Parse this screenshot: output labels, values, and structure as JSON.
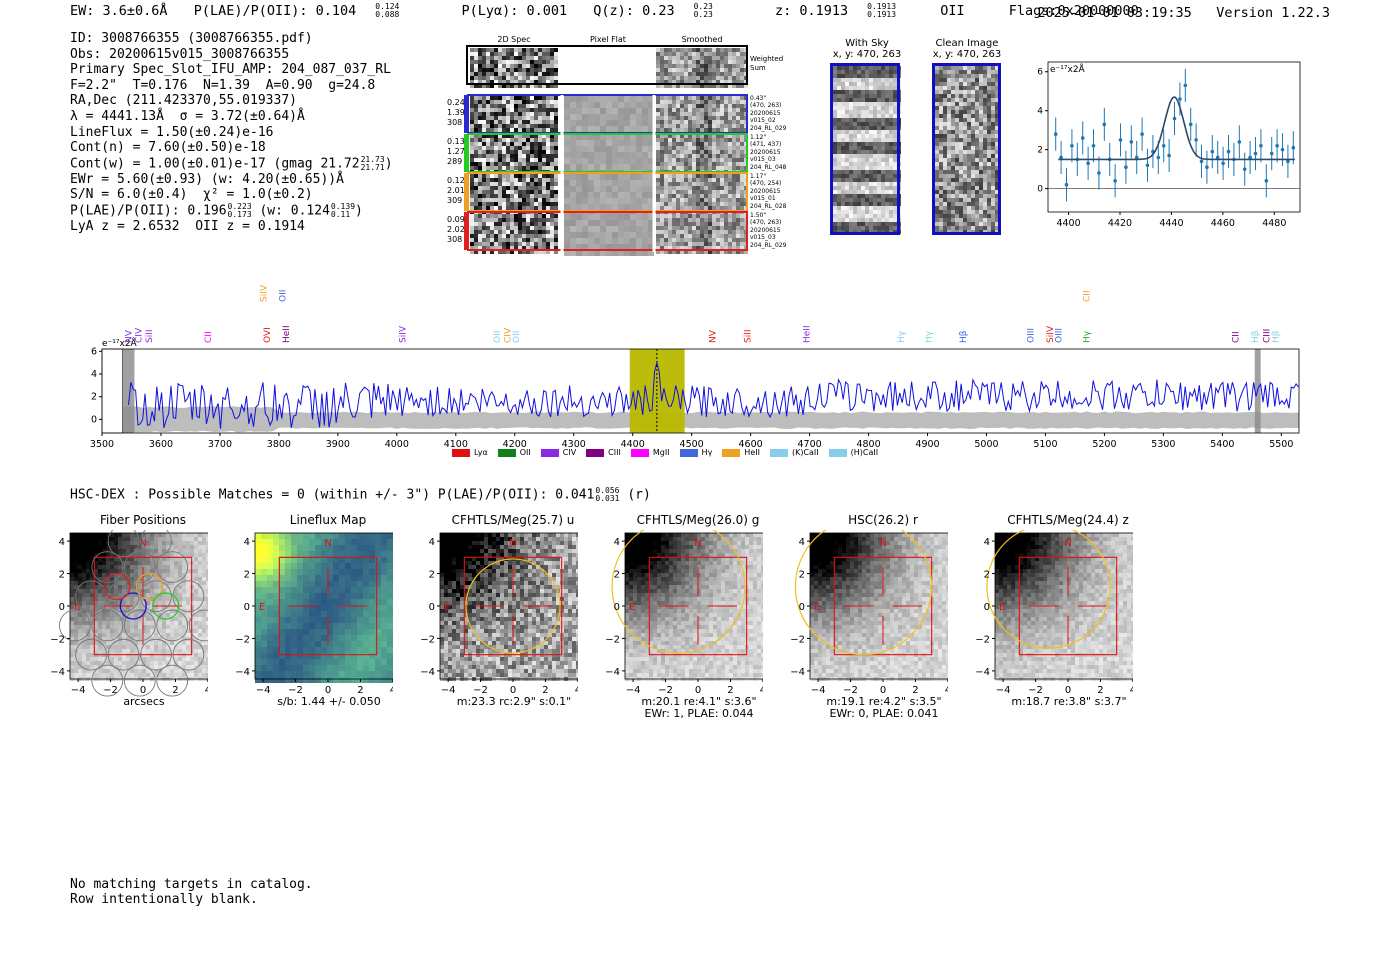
{
  "header": {
    "ew": "EW: 3.6±0.6Å",
    "plae": "P(LAE)/P(OII): 0.104",
    "plae_hi": "0.124",
    "plae_lo": "0.088",
    "plya": "P(Lyα): 0.001",
    "qz": "Q(z): 0.23",
    "qz_hi": "0.23",
    "qz_lo": "0.23",
    "z": "z: 0.1913",
    "z_hi": "0.1913",
    "z_lo": "0.1913",
    "line": "OII",
    "flags": "Flags:0x20000000",
    "datetime": "2025-01-01 03:19:35",
    "version": "Version 1.22.3"
  },
  "info": {
    "id": "ID: 3008766355 (3008766355.pdf)",
    "obs": "Obs: 20200615v015_3008766355",
    "primary": "Primary Spec_Slot_IFU_AMP: 204_087_037_RL",
    "params": "F=2.2\"  T=0.176  N=1.39  A=0.90  g=24.8",
    "radec": "RA,Dec (211.423370,55.019337)",
    "lambda": "λ = 4441.13Å  σ = 3.72(±0.64)Å",
    "lineflux": "LineFlux = 1.50(±0.24)e-16",
    "contn": "Cont(n) = 7.60(±0.50)e-18",
    "contw": "Cont(w) = 1.00(±0.01)e-17 (gmag 21.72",
    "contw_hi": "21.73",
    "contw_lo": "21.71",
    "contw_close": ")",
    "ewr": "EWr = 5.60(±0.93) (w: 4.20(±0.65))Å",
    "sn": "S/N = 6.0(±0.4)  χ² = 1.0(±0.2)",
    "plae2": "P(LAE)/P(OII): 0.196",
    "plae2_hi": "0.223",
    "plae2_lo": "0.173",
    "plae2_w": "(w: 0.124",
    "plae2_w_hi": "0.139",
    "plae2_w_lo": "0.11",
    "plae2_close": ")",
    "lyaz": "LyA z = 2.6532  OII z = 0.1914"
  },
  "cutouts": {
    "col_2d": "2D Spec",
    "col_flat": "Pixel Flat",
    "col_smooth": "Smoothed",
    "weighted": "Weighted",
    "sum": "Sum",
    "rows": [
      {
        "a": "0.24",
        "b": "1.39",
        "c": "308",
        "m1": "0.43\"",
        "m2": "(470, 263)",
        "m3": "20200615",
        "m4": "v015_02",
        "m5": "204_RL_029",
        "color": "#2a2ad0"
      },
      {
        "a": "0.13",
        "b": "1.27",
        "c": "289",
        "m1": "1.12\"",
        "m2": "(471, 437)",
        "m3": "20200615",
        "m4": "v015_03",
        "m5": "204_RL_048",
        "color": "#22cc22"
      },
      {
        "a": "0.12",
        "b": "2.01",
        "c": "309",
        "m1": "1.17\"",
        "m2": "(470, 254)",
        "m3": "20200615",
        "m4": "v015_01",
        "m5": "204_RL_028",
        "color": "#f0a020"
      },
      {
        "a": "0.09",
        "b": "2.02",
        "c": "308",
        "m1": "1.50\"",
        "m2": "(470, 263)",
        "m3": "20200615",
        "m4": "v015_03",
        "m5": "204_RL_029",
        "color": "#e02020"
      }
    ]
  },
  "sky": {
    "title1": "With Sky",
    "title2": "x, y: 470, 263",
    "clean1": "Clean Image",
    "clean2": "x, y: 470, 263"
  },
  "zoom": {
    "unit": "e⁻¹⁷x2Å",
    "xticks": [
      "4400",
      "4420",
      "4440",
      "4460",
      "4480"
    ],
    "yticks": [
      "0",
      "2",
      "4",
      "6"
    ],
    "points": [
      2.8,
      1.6,
      0.2,
      2.2,
      1.5,
      2.6,
      1.3,
      2.2,
      0.8,
      3.3,
      1.5,
      0.4,
      2.5,
      1.1,
      2.4,
      1.6,
      2.8,
      1.2,
      1.9,
      1.6,
      2.2,
      1.7,
      3.6,
      4.6,
      5.3,
      3.3,
      2.5,
      1.4,
      1.1,
      1.9,
      1.6,
      1.3,
      1.9,
      1.5,
      2.4,
      1.0,
      1.6,
      1.8,
      2.2,
      0.4,
      1.8,
      2.2,
      2.0,
      1.4,
      2.1
    ]
  },
  "spectrum": {
    "unit": "e⁻¹⁷x2Å",
    "xticks": [
      "3500",
      "3600",
      "3700",
      "3800",
      "3900",
      "4000",
      "4100",
      "4200",
      "4300",
      "4400",
      "4500",
      "4600",
      "4700",
      "4800",
      "4900",
      "5000",
      "5100",
      "5200",
      "5300",
      "5400",
      "5500"
    ],
    "yticks": [
      "0",
      "2",
      "4",
      "6"
    ],
    "lines": [
      {
        "t": "NV",
        "w": 3545,
        "c": "#8a2be2",
        "r": 1
      },
      {
        "t": "CIV",
        "w": 3562,
        "c": "#8a2be2",
        "r": 1
      },
      {
        "t": "SiII",
        "w": 3580,
        "c": "#8a2be2",
        "r": 1
      },
      {
        "t": "CII",
        "w": 3680,
        "c": "#ff00ff",
        "r": 1
      },
      {
        "t": "SiIV",
        "w": 3774,
        "c": "#f0a020",
        "r": 0
      },
      {
        "t": "OVI",
        "w": 3780,
        "c": "#e02020",
        "r": 1
      },
      {
        "t": "OII",
        "w": 3806,
        "c": "#4466dd",
        "r": 0
      },
      {
        "t": "HeII",
        "w": 3812,
        "c": "#800080",
        "r": 1
      },
      {
        "t": "SiIV",
        "w": 4010,
        "c": "#8a2be2",
        "r": 1
      },
      {
        "t": "OII",
        "w": 4170,
        "c": "#87ceeb",
        "r": 1
      },
      {
        "t": "CIV",
        "w": 4188,
        "c": "#f0a020",
        "r": 1
      },
      {
        "t": "OII",
        "w": 4202,
        "c": "#87ceeb",
        "r": 1
      },
      {
        "t": "NV",
        "w": 4535,
        "c": "#e02020",
        "r": 1
      },
      {
        "t": "SiII",
        "w": 4595,
        "c": "#e02020",
        "r": 1
      },
      {
        "t": "HeII",
        "w": 4695,
        "c": "#8a2be2",
        "r": 1
      },
      {
        "t": "Hγ",
        "w": 4855,
        "c": "#87ceeb",
        "r": 1
      },
      {
        "t": "Hγ",
        "w": 4902,
        "c": "#87ceeb",
        "r": 1
      },
      {
        "t": "Hβ",
        "w": 4960,
        "c": "#4466dd",
        "r": 1
      },
      {
        "t": "OIII",
        "w": 5075,
        "c": "#4466dd",
        "r": 1
      },
      {
        "t": "SiIV",
        "w": 5108,
        "c": "#e02020",
        "r": 1
      },
      {
        "t": "OIII",
        "w": 5122,
        "c": "#4466dd",
        "r": 1
      },
      {
        "t": "CII",
        "w": 5170,
        "c": "#f0a020",
        "r": 0
      },
      {
        "t": "Hγ",
        "w": 5170,
        "c": "#22aa22",
        "r": 1
      },
      {
        "t": "CII",
        "w": 5422,
        "c": "#800080",
        "r": 1
      },
      {
        "t": "Hβ",
        "w": 5455,
        "c": "#87ceeb",
        "r": 1
      },
      {
        "t": "CIII",
        "w": 5475,
        "c": "#800080",
        "r": 1
      },
      {
        "t": "Hβ",
        "w": 5490,
        "c": "#87ceeb",
        "r": 1
      }
    ]
  },
  "legend": [
    {
      "t": "Lyα",
      "c": "#e01010"
    },
    {
      "t": "OII",
      "c": "#10801a"
    },
    {
      "t": "CIV",
      "c": "#8a2be2"
    },
    {
      "t": "CIII",
      "c": "#800080"
    },
    {
      "t": "MgII",
      "c": "#ff00ff"
    },
    {
      "t": "Hγ",
      "c": "#4466dd"
    },
    {
      "t": "HeII",
      "c": "#f0a020"
    },
    {
      "t": "(K)CaII",
      "c": "#87ceeb"
    },
    {
      "t": "(H)CaII",
      "c": "#87ceeb"
    }
  ],
  "match": {
    "text": "HSC-DEX : Possible Matches = 0 (within +/- 3\")  P(LAE)/P(OII): 0.041",
    "hi": "0.056",
    "lo": "0.031",
    "tail": "(r)"
  },
  "stamps": [
    {
      "title": "Fiber Positions",
      "cap1": "arcsecs",
      "cap2": ""
    },
    {
      "title": "Lineflux Map",
      "cap1": "s/b: 1.44 +/- 0.050",
      "cap2": ""
    },
    {
      "title": "CFHTLS/Meg(25.7) u",
      "cap1": "m:23.3 rc:2.9\"  s:0.1\"",
      "cap2": ""
    },
    {
      "title": "CFHTLS/Meg(26.0) g",
      "cap1": "m:20.1  re:4.1\"  s:3.6\"",
      "cap2": "EWr: 1, PLAE: 0.044"
    },
    {
      "title": "HSC(26.2) r",
      "cap1": "m:19.1  re:4.2\"  s:3.5\"",
      "cap2": "EWr: 0, PLAE: 0.041"
    },
    {
      "title": "CFHTLS/Meg(24.4) z",
      "cap1": "m:18.7  re:3.8\"  s:3.7\"",
      "cap2": ""
    }
  ],
  "stamp_axis": {
    "xticks": [
      "−4",
      "−2",
      "0",
      "2",
      "4"
    ],
    "yticks": [
      "4",
      "2",
      "0",
      "−2",
      "−4"
    ],
    "north": "N",
    "east": "E"
  },
  "footer": {
    "line1": "No matching targets in catalog.",
    "line2": "Row intentionally blank."
  }
}
